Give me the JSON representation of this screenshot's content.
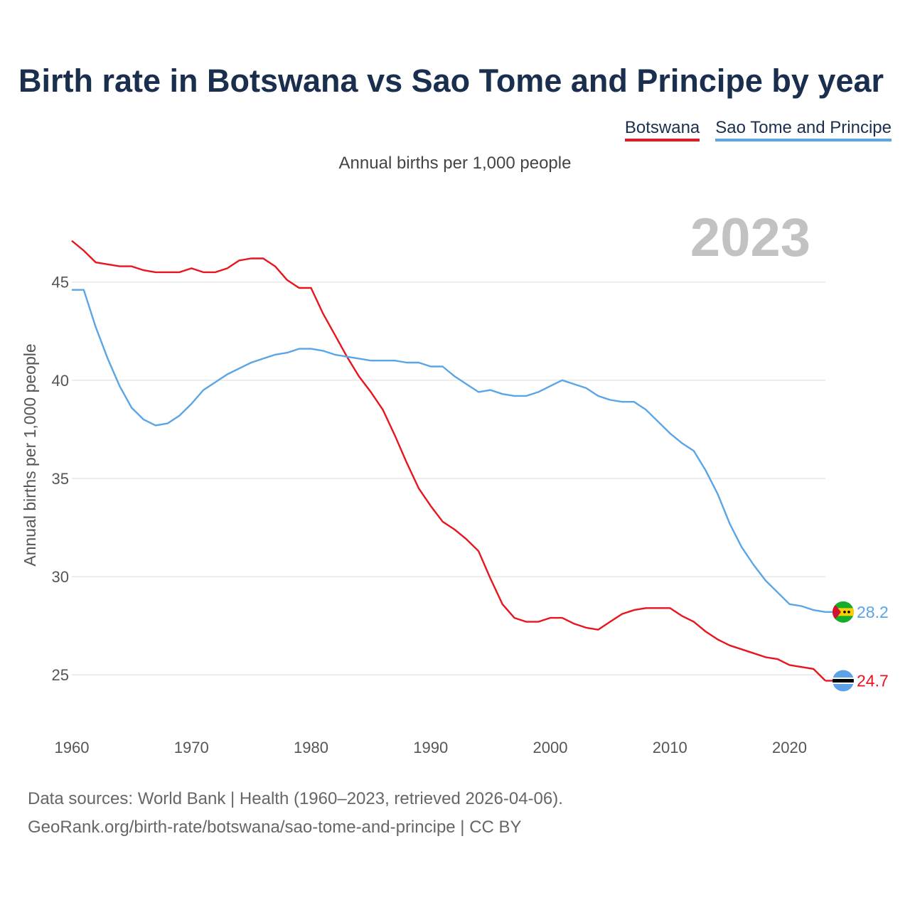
{
  "title": "Birth rate in Botswana vs Sao Tome and Principe by year",
  "subtitle": "Annual births per 1,000 people",
  "footer": {
    "line1": "Data sources: World Bank | Health (1960–2023, retrieved 2026-04-06).",
    "line2": "GeoRank.org/birth-rate/botswana/sao-tome-and-principe | CC BY"
  },
  "colors": {
    "botswana": "#e8141e",
    "sao_tome": "#5aa5e6",
    "grid": "#e6e6e6",
    "watermark": "#c2c2c2"
  },
  "chart_data": {
    "type": "line",
    "title": "Birth rate in Botswana vs Sao Tome and Principe by year",
    "xlabel": "",
    "ylabel": "Annual births per 1,000 people",
    "xlim": [
      1960,
      2023
    ],
    "ylim": [
      22.8,
      48.5
    ],
    "yticks": [
      25,
      30,
      35,
      40,
      45
    ],
    "xticks": [
      1960,
      1970,
      1980,
      1990,
      2000,
      2010,
      2020
    ],
    "grid": true,
    "legend_position": "top-right",
    "year_label": "2023",
    "x": [
      1960,
      1961,
      1962,
      1963,
      1964,
      1965,
      1966,
      1967,
      1968,
      1969,
      1970,
      1971,
      1972,
      1973,
      1974,
      1975,
      1976,
      1977,
      1978,
      1979,
      1980,
      1981,
      1982,
      1983,
      1984,
      1985,
      1986,
      1987,
      1988,
      1989,
      1990,
      1991,
      1992,
      1993,
      1994,
      1995,
      1996,
      1997,
      1998,
      1999,
      2000,
      2001,
      2002,
      2003,
      2004,
      2005,
      2006,
      2007,
      2008,
      2009,
      2010,
      2011,
      2012,
      2013,
      2014,
      2015,
      2016,
      2017,
      2018,
      2019,
      2020,
      2021,
      2022,
      2023
    ],
    "series": [
      {
        "name": "Botswana",
        "color": "#e8141e",
        "end_label": "24.7",
        "values": [
          47.1,
          46.6,
          46.0,
          45.9,
          45.8,
          45.8,
          45.6,
          45.5,
          45.5,
          45.5,
          45.7,
          45.5,
          45.5,
          45.7,
          46.1,
          46.2,
          46.2,
          45.8,
          45.1,
          44.7,
          44.7,
          43.4,
          42.3,
          41.2,
          40.2,
          39.4,
          38.5,
          37.2,
          35.8,
          34.5,
          33.6,
          32.8,
          32.4,
          31.9,
          31.3,
          29.9,
          28.6,
          27.9,
          27.7,
          27.7,
          27.9,
          27.9,
          27.6,
          27.4,
          27.3,
          27.7,
          28.1,
          28.3,
          28.4,
          28.4,
          28.4,
          28.0,
          27.7,
          27.2,
          26.8,
          26.5,
          26.3,
          26.1,
          25.9,
          25.8,
          25.5,
          25.4,
          25.3,
          24.7
        ]
      },
      {
        "name": "Sao Tome and Principe",
        "color": "#5aa5e6",
        "end_label": "28.2",
        "values": [
          44.6,
          44.6,
          42.7,
          41.1,
          39.7,
          38.6,
          38.0,
          37.7,
          37.8,
          38.2,
          38.8,
          39.5,
          39.9,
          40.3,
          40.6,
          40.9,
          41.1,
          41.3,
          41.4,
          41.6,
          41.6,
          41.5,
          41.3,
          41.2,
          41.1,
          41.0,
          41.0,
          41.0,
          40.9,
          40.9,
          40.7,
          40.7,
          40.2,
          39.8,
          39.4,
          39.5,
          39.3,
          39.2,
          39.2,
          39.4,
          39.7,
          40.0,
          39.8,
          39.6,
          39.2,
          39.0,
          38.9,
          38.9,
          38.5,
          37.9,
          37.3,
          36.8,
          36.4,
          35.4,
          34.2,
          32.7,
          31.5,
          30.6,
          29.8,
          29.2,
          28.6,
          28.5,
          28.3,
          28.2
        ]
      }
    ]
  }
}
